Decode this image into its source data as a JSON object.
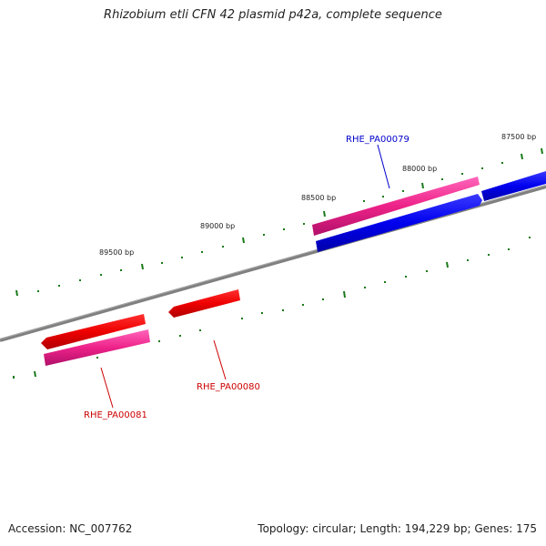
{
  "title": "Rhizobium etli CFN 42 plasmid p42a, complete sequence",
  "footer": {
    "accession": "Accession: NC_007762",
    "topology": "Topology: circular; Length: 194,229 bp; Genes: 175"
  },
  "scale_labels": [
    "87500 bp",
    "88000 bp",
    "88500 bp",
    "89000 bp",
    "89500 bp"
  ],
  "genes": [
    {
      "name": "RHE_PA00079",
      "color": "#0000cc"
    },
    {
      "name": "RHE_PA00080",
      "color": "#cc0000"
    },
    {
      "name": "RHE_PA00081",
      "color": "#cc0000"
    }
  ],
  "colors": {
    "backbone": "#808080",
    "tick": "#1a7a1a",
    "forward_feature": "#0000ee",
    "reverse_feature": "#ee0000",
    "cds": "#ee2288"
  }
}
